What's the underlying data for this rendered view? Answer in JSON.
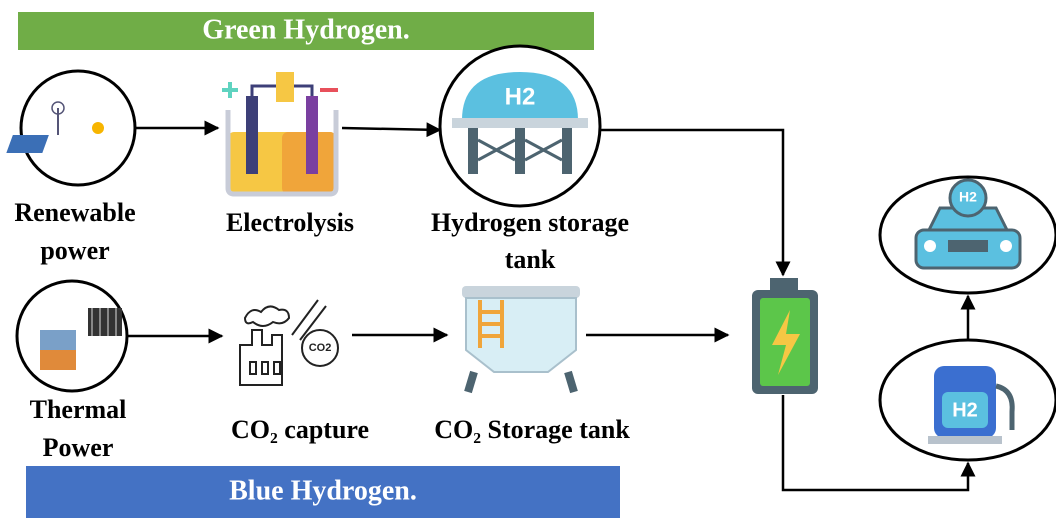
{
  "banners": {
    "green": "Green Hydrogen.",
    "blue": "Blue Hydrogen."
  },
  "nodes": [
    {
      "label": [
        "Renewable",
        "power"
      ]
    },
    {
      "label": [
        "Electrolysis"
      ]
    },
    {
      "label": [
        "Hydrogen storage",
        "tank"
      ],
      "icon_text": "H2"
    },
    {
      "label": [
        "Thermal",
        "Power"
      ]
    },
    {
      "label": [
        "CO₂ capture"
      ],
      "icon_text": "CO2"
    },
    {
      "label": [
        "CO₂ Storage tank"
      ]
    },
    {
      "icon_text": "H2"
    },
    {
      "icon_text": "H2"
    }
  ]
}
